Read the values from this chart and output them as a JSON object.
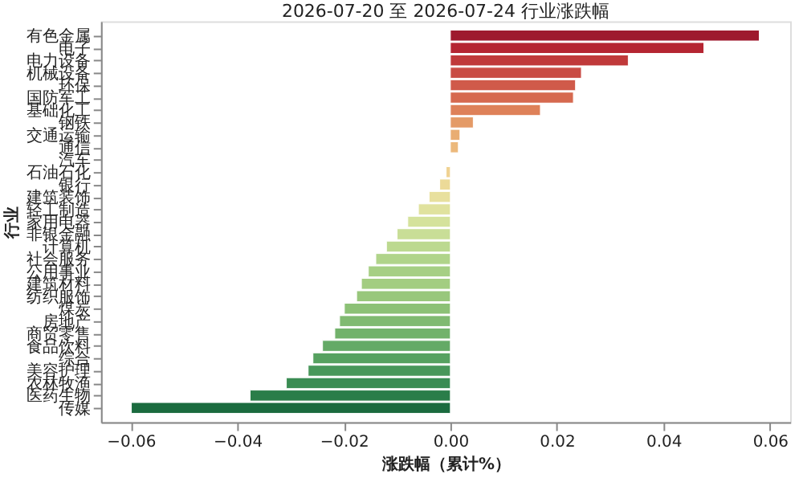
{
  "chart_data": {
    "type": "bar",
    "orientation": "horizontal",
    "title": "2026-07-20 至 2026-07-24 行业涨跌幅",
    "xlabel": "涨跌幅（累计%）",
    "ylabel": "行业",
    "categories": [
      "有色金属",
      "电子",
      "电力设备",
      "机械设备",
      "环保",
      "国防军工",
      "基础化工",
      "钢铁",
      "交通运输",
      "通信",
      "汽车",
      "石油石化",
      "银行",
      "建筑装饰",
      "轻工制造",
      "家用电器",
      "非银金融",
      "计算机",
      "社会服务",
      "公用事业",
      "建筑材料",
      "纺织服饰",
      "煤炭",
      "房地产",
      "商贸零售",
      "食品饮料",
      "综合",
      "美容护理",
      "农林牧渔",
      "医药生物",
      "传媒"
    ],
    "values": [
      0.058,
      0.0476,
      0.0334,
      0.0246,
      0.0235,
      0.0231,
      0.0169,
      0.0043,
      0.0018,
      0.0015,
      null,
      -0.0008,
      -0.002,
      -0.004,
      -0.006,
      -0.008,
      -0.01,
      -0.012,
      -0.014,
      -0.0154,
      -0.0167,
      -0.0176,
      -0.0199,
      -0.0208,
      -0.0217,
      -0.024,
      -0.0258,
      -0.0267,
      -0.0308,
      -0.0376,
      -0.0599
    ],
    "colors": [
      "#9e1a2e",
      "#b52532",
      "#c0393a",
      "#c94b44",
      "#d05a4a",
      "#d6694f",
      "#de8159",
      "#e49a66",
      "#e9ad72",
      "#ecb97c",
      "#efc788",
      "#f0d292",
      "#ecda98",
      "#e8e09e",
      "#e0e29e",
      "#d5e29c",
      "#c9de97",
      "#bcd990",
      "#b0d48a",
      "#a6cf84",
      "#a3cd81",
      "#98c77c",
      "#8cc176",
      "#80ba71",
      "#72b26b",
      "#64aa66",
      "#56a160",
      "#48975a",
      "#3a8c53",
      "#2a7d49",
      "#1b6b3f"
    ],
    "xlim": [
      -0.0656,
      0.0638
    ],
    "xticks": [
      -0.06,
      -0.04,
      -0.02,
      {
        "value": 0,
        "label": "0.00"
      },
      0.02,
      0.04,
      0.06
    ],
    "grid": false
  }
}
